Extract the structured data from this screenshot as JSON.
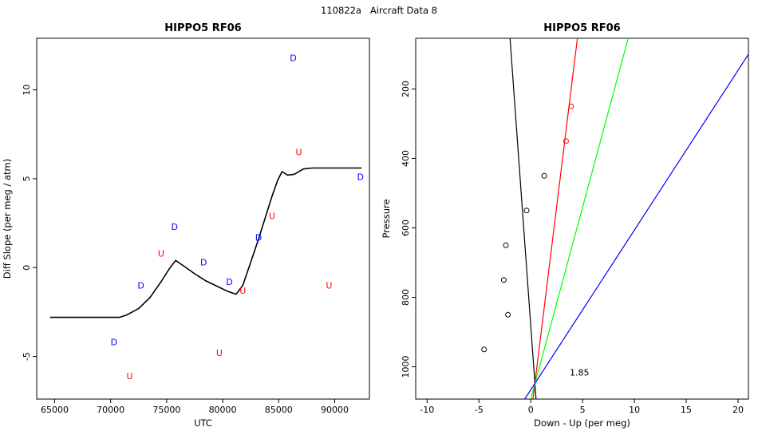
{
  "page_title": "110822a   Aircraft Data 8",
  "chart_data": [
    {
      "type": "scatter",
      "title": "HIPPO5 RF06",
      "xlabel": "UTC",
      "ylabel": "Diff Slope (per meg / atm)",
      "xlim": [
        63400,
        93100
      ],
      "ylim": [
        -7.4,
        12.9
      ],
      "xticks": [
        65000,
        70000,
        75000,
        80000,
        85000,
        90000
      ],
      "yticks": [
        -5,
        0,
        5,
        10
      ],
      "grid": false,
      "text_series": [
        {
          "label": "D",
          "name": "down-profile-points",
          "color": "#0000ff",
          "points": [
            [
              70300,
              -4.2
            ],
            [
              72700,
              -1.0
            ],
            [
              75700,
              2.3
            ],
            [
              78300,
              0.3
            ],
            [
              80600,
              -0.8
            ],
            [
              83200,
              1.7
            ],
            [
              86300,
              11.8
            ],
            [
              92300,
              5.1
            ]
          ]
        },
        {
          "label": "U",
          "name": "up-profile-points",
          "color": "#ff0000",
          "points": [
            [
              71700,
              -6.1
            ],
            [
              74500,
              0.8
            ],
            [
              79700,
              -4.8
            ],
            [
              81800,
              -1.3
            ],
            [
              84400,
              2.9
            ],
            [
              86800,
              6.5
            ],
            [
              89500,
              -1.0
            ]
          ]
        }
      ],
      "curves": [
        {
          "color": "#000000",
          "points": [
            [
              64600,
              -2.8
            ],
            [
              67000,
              -2.8
            ],
            [
              70800,
              -2.8
            ],
            [
              71500,
              -2.65
            ],
            [
              72500,
              -2.3
            ],
            [
              73500,
              -1.7
            ],
            [
              74500,
              -0.8
            ],
            [
              75200,
              -0.1
            ],
            [
              75800,
              0.4
            ],
            [
              76500,
              0.1
            ],
            [
              77500,
              -0.35
            ],
            [
              78500,
              -0.75
            ],
            [
              79500,
              -1.05
            ],
            [
              80500,
              -1.35
            ],
            [
              81200,
              -1.5
            ],
            [
              81800,
              -1.0
            ],
            [
              82500,
              0.3
            ],
            [
              83200,
              1.6
            ],
            [
              83800,
              2.8
            ],
            [
              84400,
              4.0
            ],
            [
              84900,
              4.9
            ],
            [
              85300,
              5.4
            ],
            [
              85800,
              5.2
            ],
            [
              86400,
              5.25
            ],
            [
              87200,
              5.55
            ],
            [
              88000,
              5.6
            ],
            [
              90000,
              5.6
            ],
            [
              92400,
              5.6
            ]
          ]
        }
      ],
      "lines": [],
      "point_series": [],
      "annotations": []
    },
    {
      "type": "scatter",
      "title": "HIPPO5 RF06",
      "xlabel": "Down - Up (per meg)",
      "ylabel": "Pressure",
      "xlim": [
        -11.1,
        21.0
      ],
      "ylim": [
        1093,
        54
      ],
      "y_reversed": true,
      "xticks": [
        -10,
        -5,
        0,
        5,
        10,
        15,
        20
      ],
      "yticks": [
        200,
        400,
        600,
        800,
        1000
      ],
      "grid": false,
      "text_series": [],
      "curves": [],
      "point_series": [
        {
          "name": "black-circle-points",
          "color": "#000000",
          "points": [
            [
              -4.5,
              950
            ],
            [
              -2.2,
              850
            ],
            [
              -2.6,
              750
            ],
            [
              -2.4,
              650
            ],
            [
              -0.4,
              550
            ],
            [
              1.3,
              450
            ]
          ]
        },
        {
          "name": "red-circle-points",
          "color": "#ff0000",
          "points": [
            [
              3.9,
              250
            ],
            [
              3.4,
              350
            ]
          ]
        }
      ],
      "lines": [
        {
          "name": "black-fit-line",
          "color": "#000000",
          "x1": -2.0,
          "y1": 54,
          "x2": 0.51,
          "y2": 1093
        },
        {
          "name": "red-fit-line",
          "color": "#ff0000",
          "x1": 4.5,
          "y1": 54,
          "x2": 0.21,
          "y2": 1093
        },
        {
          "name": "green-fit-line",
          "color": "#00ff00",
          "x1": 9.4,
          "y1": 54,
          "x2": 0.0,
          "y2": 1093
        },
        {
          "name": "blue-fit-line",
          "color": "#0000ff",
          "x1": 22.0,
          "y1": 54,
          "x2": -0.58,
          "y2": 1093
        }
      ],
      "annotations": [
        {
          "text": "1.85",
          "x": 4.7,
          "y": 1025
        }
      ]
    }
  ]
}
